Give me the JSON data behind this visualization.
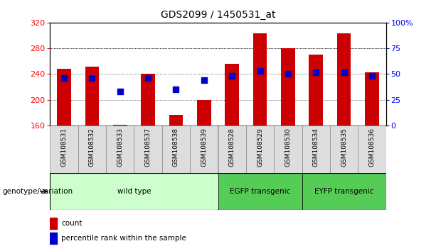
{
  "title": "GDS2099 / 1450531_at",
  "samples": [
    "GSM108531",
    "GSM108532",
    "GSM108533",
    "GSM108537",
    "GSM108538",
    "GSM108539",
    "GSM108528",
    "GSM108529",
    "GSM108530",
    "GSM108534",
    "GSM108535",
    "GSM108536"
  ],
  "counts": [
    248,
    252,
    161,
    240,
    176,
    200,
    256,
    303,
    280,
    270,
    303,
    243
  ],
  "percentiles": [
    46,
    46,
    33,
    46,
    35,
    44,
    48,
    53,
    50,
    52,
    52,
    48
  ],
  "groups": [
    {
      "label": "wild type",
      "start": 0,
      "end": 6,
      "color": "#ccffcc"
    },
    {
      "label": "EGFP transgenic",
      "start": 6,
      "end": 9,
      "color": "#55cc55"
    },
    {
      "label": "EYFP transgenic",
      "start": 9,
      "end": 12,
      "color": "#55cc55"
    }
  ],
  "ylim_left": [
    160,
    320
  ],
  "ylim_right": [
    0,
    100
  ],
  "yticks_left": [
    160,
    200,
    240,
    280,
    320
  ],
  "yticks_right": [
    0,
    25,
    50,
    75,
    100
  ],
  "bar_color": "#cc0000",
  "dot_color": "#0000cc",
  "bar_width": 0.5,
  "background_color": "#ffffff",
  "grid_color": "#000000",
  "legend_count_label": "count",
  "legend_pct_label": "percentile rank within the sample",
  "group_label": "genotype/variation"
}
